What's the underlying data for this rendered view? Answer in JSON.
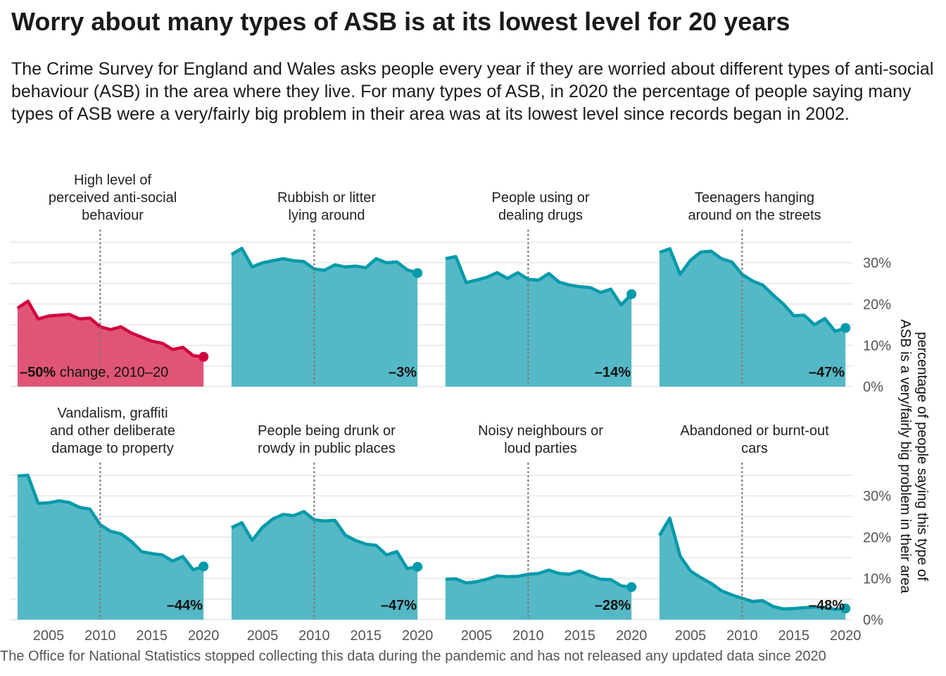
{
  "title": "Worry about many types of ASB is at its lowest level for 20 years",
  "subtitle": "The Crime Survey for England and Wales asks people every year if they are worried about different types of anti-social behaviour (ASB) in the area where they live. For many types of ASB, in 2020 the percentage of people saying many types of ASB were a very/fairly big problem in their area was at its lowest level since records began in 2002.",
  "caption": "The Office for National Statistics stopped collecting this data during the pandemic and has not released any updated data since 2020",
  "colors": {
    "highlight": "#d1003f",
    "highlight_fill": "#e05575",
    "series": "#009aab",
    "series_fill": "#55b8c6",
    "grid": "#e6e6e6",
    "ref_line": "#777777"
  },
  "chart_data": {
    "type": "area",
    "x": [
      2002,
      2003,
      2004,
      2005,
      2006,
      2007,
      2008,
      2009,
      2010,
      2011,
      2012,
      2013,
      2014,
      2015,
      2016,
      2017,
      2018,
      2019,
      2020
    ],
    "xlim": [
      2001.8,
      2020.6
    ],
    "ylim": [
      0,
      36
    ],
    "x_ticks": [
      2005,
      2010,
      2015,
      2020
    ],
    "y_ticks": [
      0,
      10,
      20,
      30
    ],
    "y_tick_labels": [
      "0%",
      "10%",
      "20%",
      "30%"
    ],
    "grid": true,
    "reference_line_x": 2010,
    "ylabel": "percentage of people saying this type of ASB is a very/fairly big problem in their area",
    "panels": [
      {
        "name": "High level of perceived anti-social behaviour",
        "title_lines": [
          "High level of",
          "perceived anti-social",
          "behaviour"
        ],
        "change_bold": "–50%",
        "change_rest": " change, 2010–20",
        "highlight": true,
        "values": [
          19,
          20.7,
          16.4,
          17.1,
          17.3,
          17.5,
          16.4,
          16.6,
          14.5,
          13.8,
          14.5,
          13,
          12,
          11,
          10.5,
          9,
          9.5,
          7.5,
          7.2
        ]
      },
      {
        "name": "Rubbish or litter lying around",
        "title_lines": [
          "Rubbish or litter",
          "lying around"
        ],
        "change_bold": "–3%",
        "change_rest": "",
        "highlight": false,
        "values": [
          32,
          33.5,
          29,
          30,
          30.5,
          31,
          30.5,
          30.3,
          28.5,
          28.2,
          29.5,
          29,
          29.2,
          28.8,
          31,
          30,
          30.2,
          28.3,
          27.5
        ]
      },
      {
        "name": "People using or dealing drugs",
        "title_lines": [
          "People using or",
          "dealing drugs"
        ],
        "change_bold": "–14%",
        "change_rest": "",
        "highlight": false,
        "values": [
          31,
          31.5,
          25.2,
          25.8,
          26.5,
          27.6,
          26.2,
          27.6,
          26,
          25.8,
          27.4,
          25.3,
          24.6,
          24.2,
          24,
          22.8,
          23.6,
          19.8,
          22.4
        ]
      },
      {
        "name": "Teenagers hanging around on the streets",
        "title_lines": [
          "Teenagers hanging",
          "around on the streets"
        ],
        "change_bold": "–47%",
        "change_rest": "",
        "highlight": false,
        "values": [
          32.5,
          33.4,
          27.2,
          30.6,
          32.6,
          32.8,
          31,
          30.2,
          27.2,
          25.6,
          24.6,
          22.2,
          20,
          17.2,
          17.3,
          15,
          16.5,
          13.4,
          14.2
        ]
      },
      {
        "name": "Vandalism, graffiti and other deliberate damage to property",
        "title_lines": [
          "Vandalism, graffiti",
          "and other deliberate",
          "damage to property"
        ],
        "change_bold": "–44%",
        "change_rest": "",
        "highlight": false,
        "values": [
          34.8,
          35,
          28.2,
          28.3,
          28.8,
          28.4,
          27.2,
          26.8,
          23,
          21.4,
          20.8,
          19,
          16.5,
          16,
          15.7,
          14.2,
          15.3,
          12.1,
          12.9
        ]
      },
      {
        "name": "People being drunk or rowdy in public places",
        "title_lines": [
          "People being drunk or",
          "rowdy in public places"
        ],
        "change_bold": "–47%",
        "change_rest": "",
        "highlight": false,
        "values": [
          22.3,
          23.5,
          19.2,
          22.4,
          24.4,
          25.5,
          25.2,
          26.2,
          24.2,
          23.9,
          24.1,
          20.5,
          19.2,
          18.3,
          18,
          15.7,
          16.5,
          12.4,
          12.8
        ]
      },
      {
        "name": "Noisy neighbours or loud parties",
        "title_lines": [
          "Noisy neighbours or",
          "loud parties"
        ],
        "change_bold": "–28%",
        "change_rest": "",
        "highlight": false,
        "values": [
          9.8,
          9.9,
          8.9,
          9.2,
          9.8,
          10.6,
          10.4,
          10.5,
          11,
          11.2,
          12,
          11.2,
          11,
          11.8,
          10.7,
          9.8,
          9.7,
          8.2,
          7.9
        ]
      },
      {
        "name": "Abandoned or burnt-out cars",
        "title_lines": [
          "Abandoned or burnt-out",
          "cars"
        ],
        "change_bold": "–48%",
        "change_rest": "",
        "highlight": false,
        "values": [
          20.4,
          24.6,
          15.4,
          11.8,
          10.2,
          8.8,
          7,
          6,
          5.2,
          4.4,
          4.6,
          3.2,
          2.6,
          2.7,
          2.9,
          3.1,
          2.9,
          2.5,
          2.7
        ]
      }
    ]
  }
}
